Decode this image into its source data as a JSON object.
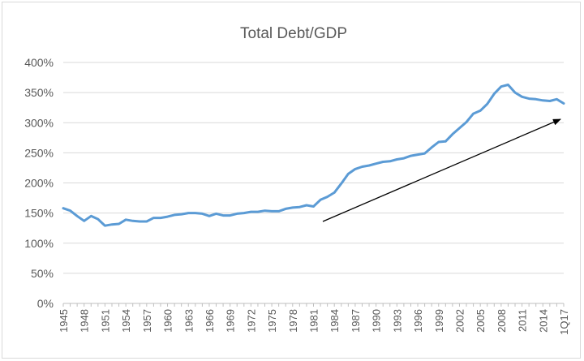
{
  "chart_data": {
    "type": "line",
    "title": "Total Debt/GDP",
    "xlabel": "",
    "ylabel": "",
    "ylim": [
      0,
      4.0
    ],
    "y_ticks": [
      "0%",
      "50%",
      "100%",
      "150%",
      "200%",
      "250%",
      "300%",
      "350%",
      "400%"
    ],
    "x_tick_labels": [
      "1945",
      "1948",
      "1951",
      "1954",
      "1957",
      "1960",
      "1963",
      "1966",
      "1969",
      "1972",
      "1975",
      "1978",
      "1981",
      "1984",
      "1987",
      "1990",
      "1993",
      "1996",
      "1999",
      "2002",
      "2005",
      "2008",
      "2011",
      "2014",
      "1Q17"
    ],
    "grid": "horizontal",
    "legend": "none",
    "series_color": "#5b9bd5",
    "annotation": "arrow-upward-trend",
    "series": [
      {
        "x": [
          "1945",
          "1946",
          "1947",
          "1948",
          "1949",
          "1950",
          "1951",
          "1952",
          "1953",
          "1954",
          "1955",
          "1956",
          "1957",
          "1958",
          "1959",
          "1960",
          "1961",
          "1962",
          "1963",
          "1964",
          "1965",
          "1966",
          "1967",
          "1968",
          "1969",
          "1970",
          "1971",
          "1972",
          "1973",
          "1974",
          "1975",
          "1976",
          "1977",
          "1978",
          "1979",
          "1980",
          "1981",
          "1982",
          "1983",
          "1984",
          "1985",
          "1986",
          "1987",
          "1988",
          "1989",
          "1990",
          "1991",
          "1992",
          "1993",
          "1994",
          "1995",
          "1996",
          "1997",
          "1998",
          "1999",
          "2000",
          "2001",
          "2002",
          "2003",
          "2004",
          "2005",
          "2006",
          "2007",
          "2008",
          "2009",
          "2010",
          "2011",
          "2012",
          "2013",
          "2014",
          "2015",
          "2016",
          "1Q17"
        ],
        "values": [
          1.58,
          1.54,
          1.45,
          1.37,
          1.45,
          1.4,
          1.29,
          1.31,
          1.32,
          1.39,
          1.37,
          1.36,
          1.36,
          1.42,
          1.42,
          1.44,
          1.47,
          1.48,
          1.5,
          1.5,
          1.49,
          1.45,
          1.49,
          1.46,
          1.46,
          1.49,
          1.5,
          1.52,
          1.52,
          1.54,
          1.53,
          1.53,
          1.57,
          1.59,
          1.6,
          1.63,
          1.61,
          1.72,
          1.77,
          1.84,
          1.99,
          2.15,
          2.23,
          2.27,
          2.29,
          2.32,
          2.35,
          2.36,
          2.39,
          2.41,
          2.45,
          2.47,
          2.49,
          2.59,
          2.68,
          2.69,
          2.81,
          2.91,
          3.01,
          3.15,
          3.2,
          3.31,
          3.48,
          3.6,
          3.63,
          3.5,
          3.43,
          3.4,
          3.39,
          3.37,
          3.36,
          3.39,
          3.32
        ]
      }
    ]
  }
}
